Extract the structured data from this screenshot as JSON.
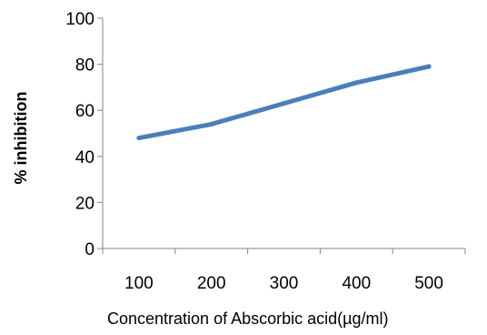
{
  "chart_data": {
    "type": "line",
    "x": [
      100,
      200,
      300,
      400,
      500
    ],
    "series": [
      {
        "values": [
          48,
          54,
          63,
          72,
          79
        ],
        "color": "#4a7ebb"
      }
    ],
    "xlabel": "Concentration of Abscorbic acid(µg/ml)",
    "ylabel": "% inhibition",
    "yticks": [
      "0",
      "20",
      "40",
      "60",
      "80",
      "100"
    ],
    "xticks": [
      "100",
      "200",
      "300",
      "400",
      "500"
    ],
    "ylim": [
      0,
      100
    ],
    "grid": false,
    "legend": "none",
    "axis_color": "#868686",
    "title": ""
  }
}
